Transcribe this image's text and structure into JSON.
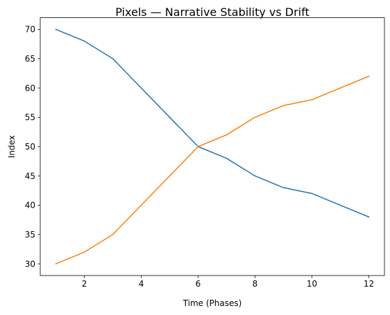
{
  "chart_data": {
    "type": "line",
    "title": "Pixels — Narrative Stability vs Drift",
    "xlabel": "Time (Phases)",
    "ylabel": "Index",
    "x": [
      1,
      2,
      3,
      4,
      5,
      6,
      7,
      8,
      9,
      10,
      11,
      12
    ],
    "xlim": [
      0.45,
      12.55
    ],
    "ylim": [
      28,
      72
    ],
    "xticks": [
      2,
      4,
      6,
      8,
      10,
      12
    ],
    "yticks": [
      30,
      35,
      40,
      45,
      50,
      55,
      60,
      65,
      70
    ],
    "grid": false,
    "series": [
      {
        "values": [
          70,
          68,
          65,
          60,
          55,
          50,
          48,
          45,
          43,
          42,
          40,
          38
        ],
        "color": "#1f77b4"
      },
      {
        "values": [
          30,
          32,
          35,
          40,
          45,
          50,
          52,
          55,
          57,
          58,
          60,
          62
        ],
        "color": "#ff7f0e"
      }
    ]
  }
}
